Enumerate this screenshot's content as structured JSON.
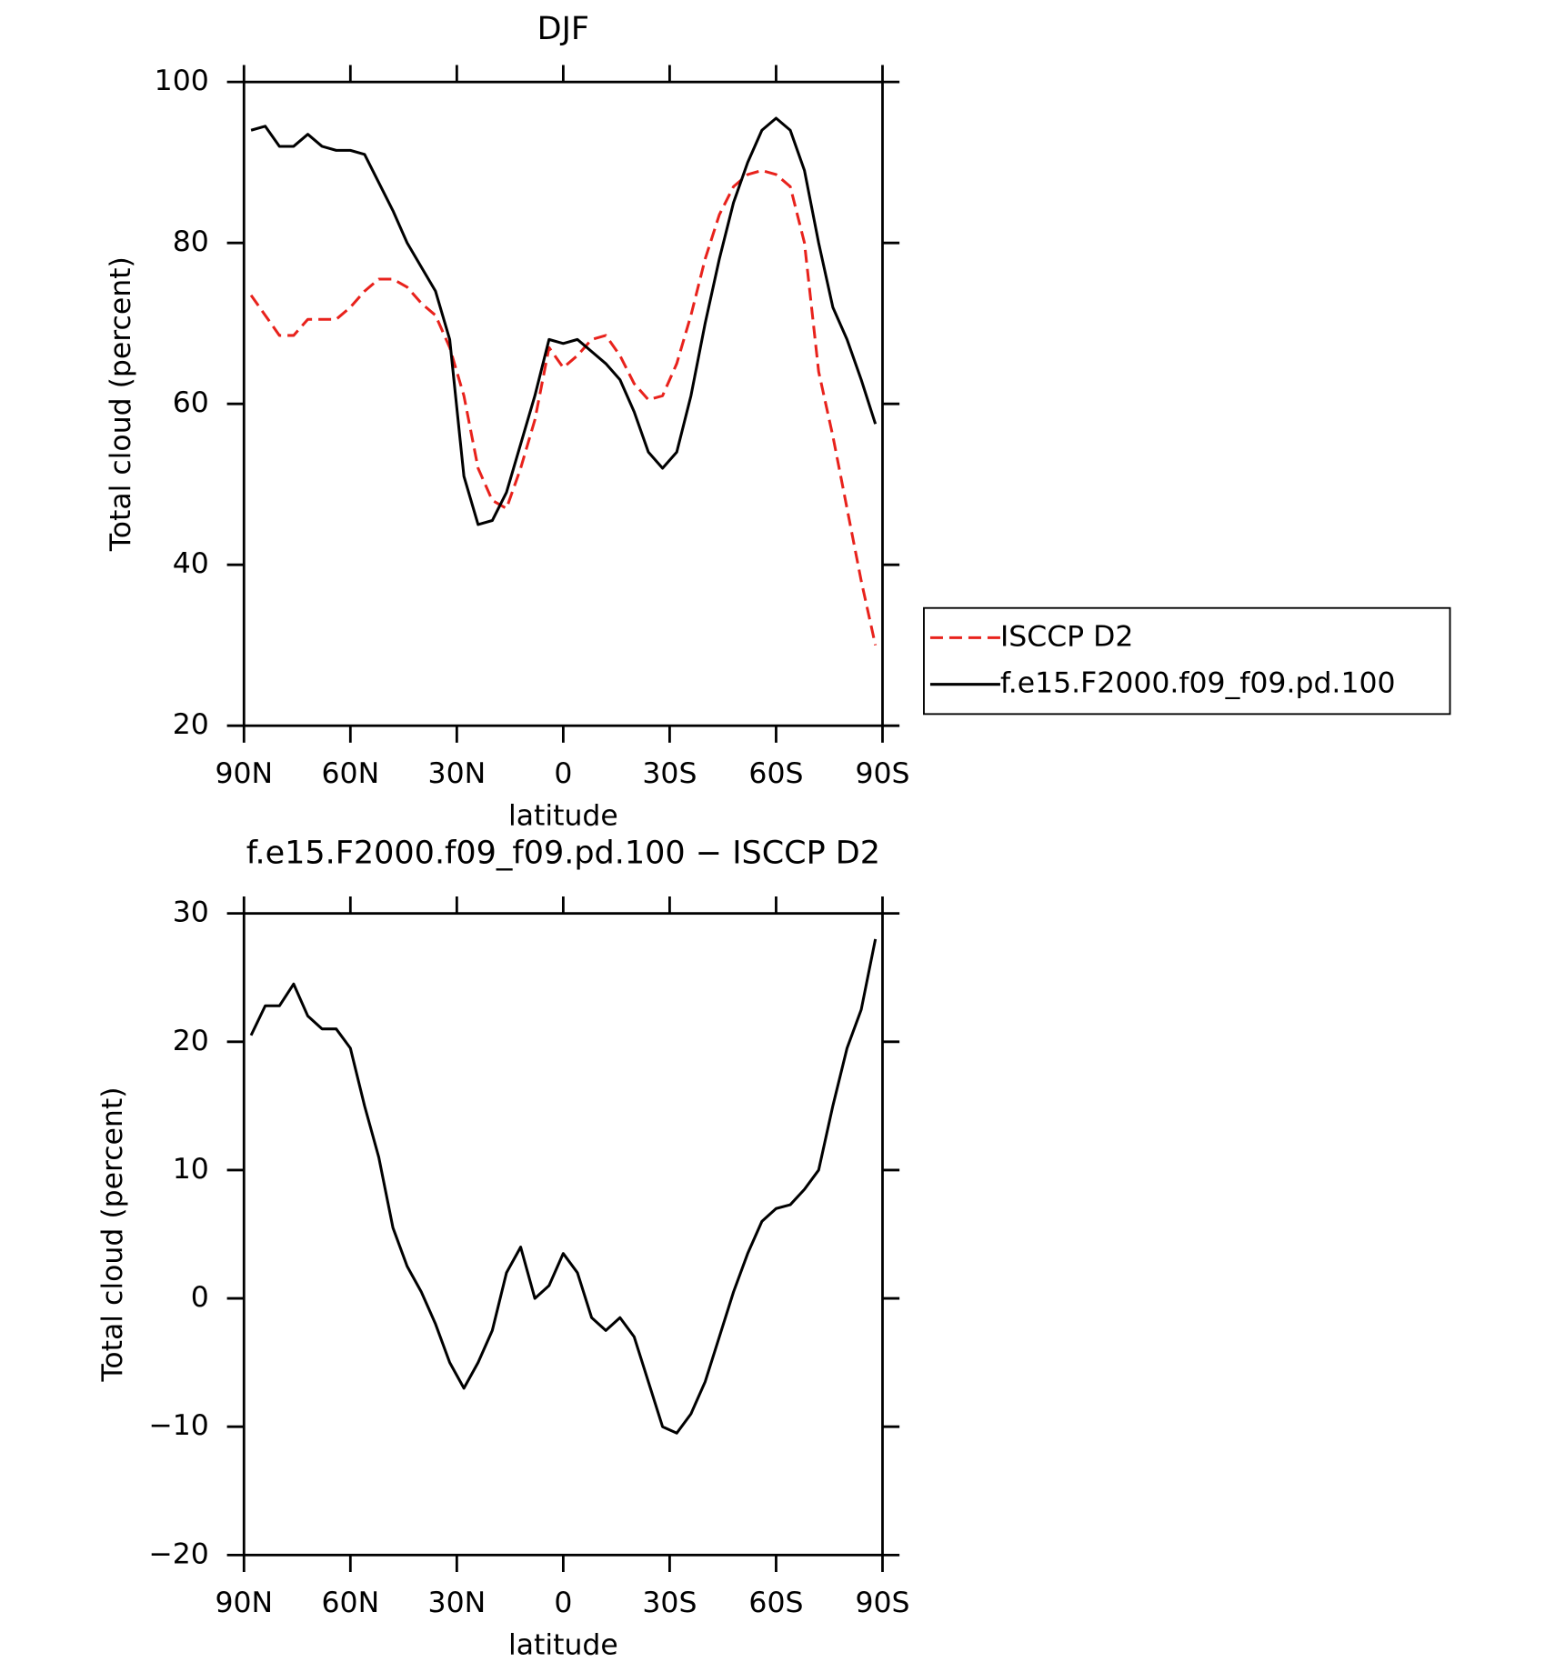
{
  "chart_data": [
    {
      "type": "line",
      "title": "DJF",
      "xlabel": "latitude",
      "ylabel": "Total cloud (percent)",
      "x": [
        88,
        84,
        80,
        76,
        72,
        68,
        64,
        60,
        56,
        52,
        48,
        44,
        40,
        36,
        32,
        28,
        24,
        20,
        16,
        12,
        8,
        4,
        0,
        -4,
        -8,
        -12,
        -16,
        -20,
        -24,
        -28,
        -32,
        -36,
        -40,
        -44,
        -48,
        -52,
        -56,
        -60,
        -64,
        -68,
        -72,
        -76,
        -80,
        -84,
        -88
      ],
      "series": [
        {
          "name": "ISCCP D2",
          "color": "#e8221c",
          "style": "dashed",
          "values": [
            73.5,
            71,
            68.5,
            68.5,
            70.5,
            70.5,
            70.5,
            72,
            74,
            75.5,
            75.5,
            74.5,
            72.5,
            71,
            67,
            61,
            52,
            48,
            47,
            52,
            58,
            67,
            64.5,
            66,
            68,
            68.5,
            66,
            62.5,
            60.5,
            61,
            65,
            71,
            78,
            83.5,
            87,
            88.5,
            89,
            88.5,
            87,
            80,
            64,
            56,
            47,
            38,
            30
          ]
        },
        {
          "name": "f.e15.F2000.f09_f09.pd.100",
          "color": "#000000",
          "style": "solid",
          "values": [
            94,
            94.5,
            92,
            92,
            93.5,
            92,
            91.5,
            91.5,
            91,
            87.5,
            84,
            80,
            77,
            74,
            68,
            51,
            45,
            45.5,
            49,
            55,
            61,
            68,
            67.5,
            68,
            66.5,
            65,
            63,
            59,
            54,
            52,
            54,
            61,
            70,
            78,
            85,
            90,
            94,
            95.5,
            94,
            89,
            80,
            72,
            68,
            63,
            57.5
          ]
        }
      ],
      "xlim": [
        90,
        -90
      ],
      "xticks": [
        {
          "value": 90,
          "label": "90N"
        },
        {
          "value": 60,
          "label": "60N"
        },
        {
          "value": 30,
          "label": "30N"
        },
        0,
        {
          "value": -30,
          "label": "30S"
        },
        {
          "value": -60,
          "label": "60S"
        },
        {
          "value": -90,
          "label": "90S"
        }
      ],
      "ylim": [
        20,
        100
      ],
      "yticks": [
        20,
        40,
        60,
        80,
        100
      ],
      "legend": "outside-right"
    },
    {
      "type": "line",
      "title": "f.e15.F2000.f09_f09.pd.100 − ISCCP D2",
      "xlabel": "latitude",
      "ylabel": "Total cloud (percent)",
      "x": [
        88,
        84,
        80,
        76,
        72,
        68,
        64,
        60,
        56,
        52,
        48,
        44,
        40,
        36,
        32,
        28,
        24,
        20,
        16,
        12,
        8,
        4,
        0,
        -4,
        -8,
        -12,
        -16,
        -20,
        -24,
        -28,
        -32,
        -36,
        -40,
        -44,
        -48,
        -52,
        -56,
        -60,
        -64,
        -68,
        -72,
        -76,
        -80,
        -84,
        -88
      ],
      "color": "#000000",
      "values": [
        20.5,
        22.8,
        22.8,
        24.5,
        22,
        21,
        21,
        19.5,
        15,
        11,
        5.5,
        2.5,
        0.5,
        -2,
        -5,
        -7,
        -5,
        -2.5,
        2,
        4,
        0,
        1,
        3.5,
        2,
        -1.5,
        -2.5,
        -1.5,
        -3,
        -6.5,
        -10,
        -10.5,
        -9,
        -6.5,
        -3,
        0.5,
        3.5,
        6,
        7,
        7.3,
        8.5,
        10,
        15,
        19.5,
        22.5,
        28
      ],
      "xlim": [
        90,
        -90
      ],
      "xticks": [
        {
          "value": 90,
          "label": "90N"
        },
        {
          "value": 60,
          "label": "60N"
        },
        {
          "value": 30,
          "label": "30N"
        },
        0,
        {
          "value": -30,
          "label": "30S"
        },
        {
          "value": -60,
          "label": "60S"
        },
        {
          "value": -90,
          "label": "90S"
        }
      ],
      "ylim": [
        -20,
        30
      ],
      "yticks": [
        {
          "value": -20,
          "label": "−20"
        },
        {
          "value": -10,
          "label": "−10"
        },
        0,
        10,
        20,
        30
      ]
    }
  ]
}
